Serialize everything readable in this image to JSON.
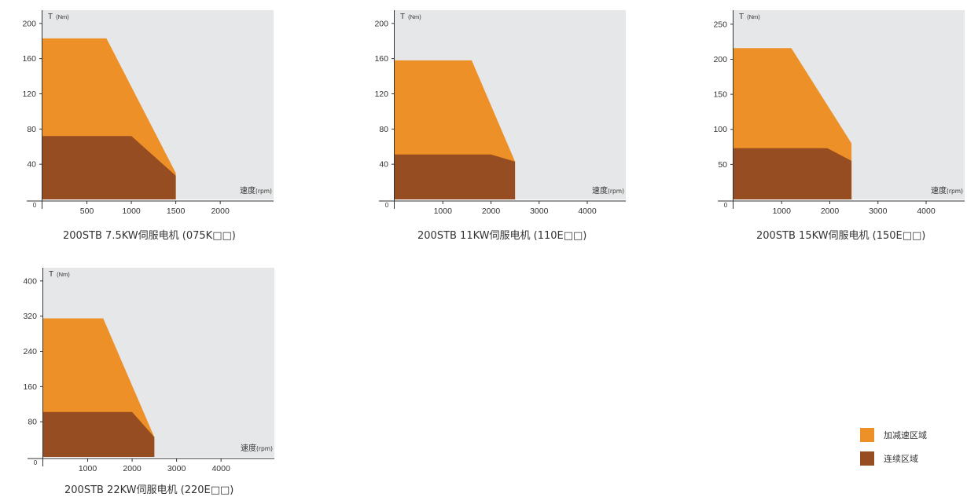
{
  "colors": {
    "plot_bg": "#e6e7e8",
    "accel": "#ee9028",
    "continuous": "#974d22",
    "axis": "#333333"
  },
  "legend": {
    "accel_label": "加减速区域",
    "continuous_label": "连续区域"
  },
  "chart_data": [
    {
      "type": "area",
      "title": "200STB 7.5KW伺服电机 (075K□□)",
      "ylabel": "T",
      "yunit": "(Nm)",
      "xlabel": "速度",
      "xunit": "(rpm)",
      "origin_label": "0",
      "xlim": [
        0,
        2600
      ],
      "ylim": [
        0,
        215
      ],
      "xticks": [
        500,
        1000,
        1500,
        2000
      ],
      "yticks": [
        40,
        80,
        120,
        160,
        200
      ],
      "series": [
        {
          "name": "加减速区域",
          "x": [
            0,
            720,
            1500,
            1500,
            0
          ],
          "y": [
            183,
            183,
            30,
            0,
            0
          ]
        },
        {
          "name": "连续区域",
          "x": [
            0,
            1000,
            1500,
            1500,
            0
          ],
          "y": [
            72,
            72,
            27,
            0,
            0
          ]
        }
      ]
    },
    {
      "type": "area",
      "title": "200STB 11KW伺服电机 (110E□□)",
      "ylabel": "T",
      "yunit": "(Nm)",
      "xlabel": "速度",
      "xunit": "(rpm)",
      "origin_label": "0",
      "xlim": [
        0,
        4800
      ],
      "ylim": [
        0,
        215
      ],
      "xticks": [
        1000,
        2000,
        3000,
        4000
      ],
      "yticks": [
        40,
        80,
        120,
        160,
        200
      ],
      "series": [
        {
          "name": "加减速区域",
          "x": [
            0,
            1600,
            2500,
            2500,
            0
          ],
          "y": [
            158,
            158,
            43,
            0,
            0
          ]
        },
        {
          "name": "连续区域",
          "x": [
            0,
            2000,
            2500,
            2500,
            0
          ],
          "y": [
            51,
            51,
            43,
            0,
            0
          ]
        }
      ]
    },
    {
      "type": "area",
      "title": "200STB 15KW伺服电机 (150E□□)",
      "ylabel": "T",
      "yunit": "(Nm)",
      "xlabel": "速度",
      "xunit": "(rpm)",
      "origin_label": "0",
      "xlim": [
        0,
        4800
      ],
      "ylim": [
        0,
        270
      ],
      "xticks": [
        1000,
        2000,
        3000,
        4000
      ],
      "yticks": [
        50,
        100,
        150,
        200,
        250
      ],
      "series": [
        {
          "name": "加减速区域",
          "x": [
            0,
            1200,
            2450,
            2450,
            0
          ],
          "y": [
            216,
            216,
            80,
            0,
            0
          ]
        },
        {
          "name": "连续区域",
          "x": [
            0,
            1950,
            2450,
            2450,
            0
          ],
          "y": [
            73,
            73,
            55,
            0,
            0
          ]
        }
      ]
    },
    {
      "type": "area",
      "title": "200STB 22KW伺服电机 (220E□□)",
      "ylabel": "T",
      "yunit": "(Nm)",
      "xlabel": "速度",
      "xunit": "(rpm)",
      "origin_label": "0",
      "xlim": [
        0,
        5200
      ],
      "ylim": [
        0,
        430
      ],
      "xticks": [
        1000,
        2000,
        3000,
        4000
      ],
      "yticks": [
        80,
        160,
        240,
        320,
        400
      ],
      "series": [
        {
          "name": "加减速区域",
          "x": [
            0,
            1350,
            2500,
            2500,
            0
          ],
          "y": [
            315,
            315,
            45,
            0,
            0
          ]
        },
        {
          "name": "连续区域",
          "x": [
            0,
            2000,
            2500,
            2500,
            0
          ],
          "y": [
            102,
            102,
            45,
            0,
            0
          ]
        }
      ]
    }
  ]
}
